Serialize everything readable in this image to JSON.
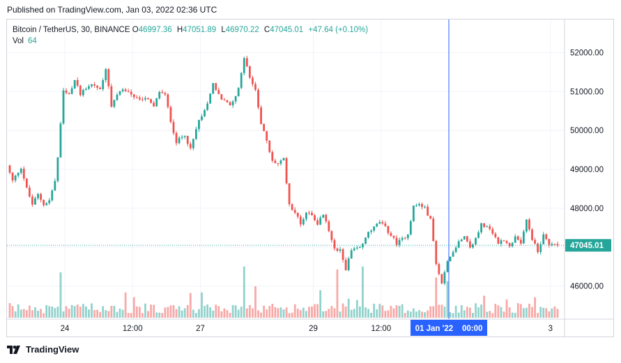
{
  "header": {
    "published": "Published on TradingView.com, Jan 03, 2022 02:36 UTC"
  },
  "legend": {
    "symbol": "Bitcoin / TetherUS, 30, BINANCE",
    "o_label": "O",
    "o_value": "46997.36",
    "h_label": "H",
    "h_value": "47051.89",
    "l_label": "L",
    "l_value": "46970.22",
    "c_label": "C",
    "c_value": "47045.01",
    "change": "+47.64 (+0.10%)",
    "vol_label": "Vol",
    "vol_value": "64"
  },
  "footer": {
    "brand": "TradingView"
  },
  "colors": {
    "up": "#26a69a",
    "down": "#ef5350",
    "crosshair": "#2962ff",
    "grid": "#f0f3fa",
    "axis_text": "#131722"
  },
  "chart_data": {
    "type": "candlestick",
    "y_ticks": [
      46000,
      47000,
      48000,
      49000,
      50000,
      51000,
      52000
    ],
    "y_tick_labels": [
      "46000.00",
      "47000.00",
      "48000.00",
      "49000.00",
      "50000.00",
      "51000.00",
      "52000.00"
    ],
    "ylim": [
      45150,
      52850
    ],
    "x_ticks": [
      {
        "label": "24",
        "t": 20
      },
      {
        "label": "12:00",
        "t": 44
      },
      {
        "label": "27",
        "t": 68
      },
      {
        "label": "29",
        "t": 108
      },
      {
        "label": "12:00",
        "t": 132
      },
      {
        "label": "3",
        "t": 192
      }
    ],
    "x_range": [
      0,
      195
    ],
    "last_price": 47045.01,
    "last_price_label": "47045.01",
    "crosshair": {
      "t": 156,
      "label": "01 Jan '22    00:00"
    },
    "price_path": [
      [
        0,
        49100
      ],
      [
        2,
        48700
      ],
      [
        5,
        49050
      ],
      [
        7,
        48500
      ],
      [
        9,
        48100
      ],
      [
        11,
        48350
      ],
      [
        13,
        48100
      ],
      [
        15,
        48200
      ],
      [
        17,
        48700
      ],
      [
        18,
        49300
      ],
      [
        20,
        51000
      ],
      [
        22,
        50900
      ],
      [
        24,
        51300
      ],
      [
        26,
        50950
      ],
      [
        28,
        51100
      ],
      [
        30,
        51200
      ],
      [
        33,
        51050
      ],
      [
        35,
        51600
      ],
      [
        37,
        50600
      ],
      [
        40,
        51050
      ],
      [
        43,
        51000
      ],
      [
        46,
        50800
      ],
      [
        49,
        50850
      ],
      [
        52,
        50600
      ],
      [
        54,
        51000
      ],
      [
        56,
        50900
      ],
      [
        58,
        50250
      ],
      [
        60,
        49700
      ],
      [
        63,
        49900
      ],
      [
        65,
        49500
      ],
      [
        68,
        50300
      ],
      [
        70,
        50500
      ],
      [
        73,
        51200
      ],
      [
        76,
        50800
      ],
      [
        79,
        50650
      ],
      [
        82,
        51050
      ],
      [
        84,
        51900
      ],
      [
        86,
        51350
      ],
      [
        88,
        51050
      ],
      [
        90,
        50200
      ],
      [
        92,
        49700
      ],
      [
        94,
        49200
      ],
      [
        96,
        49150
      ],
      [
        98,
        49250
      ],
      [
        100,
        48100
      ],
      [
        102,
        47900
      ],
      [
        104,
        47600
      ],
      [
        106,
        47900
      ],
      [
        108,
        47850
      ],
      [
        110,
        47600
      ],
      [
        112,
        47850
      ],
      [
        114,
        47400
      ],
      [
        116,
        47000
      ],
      [
        118,
        46900
      ],
      [
        120,
        46450
      ],
      [
        122,
        46900
      ],
      [
        124,
        46950
      ],
      [
        126,
        47050
      ],
      [
        128,
        47400
      ],
      [
        130,
        47500
      ],
      [
        132,
        47650
      ],
      [
        134,
        47500
      ],
      [
        136,
        47300
      ],
      [
        138,
        47100
      ],
      [
        140,
        47200
      ],
      [
        142,
        47350
      ],
      [
        144,
        48050
      ],
      [
        146,
        48100
      ],
      [
        148,
        48000
      ],
      [
        150,
        47700
      ],
      [
        152,
        46600
      ],
      [
        154,
        46100
      ],
      [
        156,
        46600
      ],
      [
        158,
        46900
      ],
      [
        160,
        47150
      ],
      [
        162,
        47300
      ],
      [
        164,
        47000
      ],
      [
        166,
        47200
      ],
      [
        168,
        47600
      ],
      [
        170,
        47500
      ],
      [
        172,
        47350
      ],
      [
        174,
        47100
      ],
      [
        176,
        47200
      ],
      [
        178,
        47000
      ],
      [
        180,
        47300
      ],
      [
        182,
        47050
      ],
      [
        184,
        47700
      ],
      [
        186,
        47200
      ],
      [
        188,
        46900
      ],
      [
        190,
        47300
      ],
      [
        192,
        47100
      ],
      [
        195,
        47045
      ]
    ],
    "volume_spikes": [
      {
        "t": 18,
        "v": 0.62
      },
      {
        "t": 83,
        "v": 0.7
      },
      {
        "t": 116,
        "v": 0.66
      },
      {
        "t": 125,
        "v": 0.7
      },
      {
        "t": 151,
        "v": 0.55
      },
      {
        "t": 155,
        "v": 0.5
      },
      {
        "t": 176,
        "v": 0.25
      },
      {
        "t": 186,
        "v": 0.28
      }
    ]
  }
}
